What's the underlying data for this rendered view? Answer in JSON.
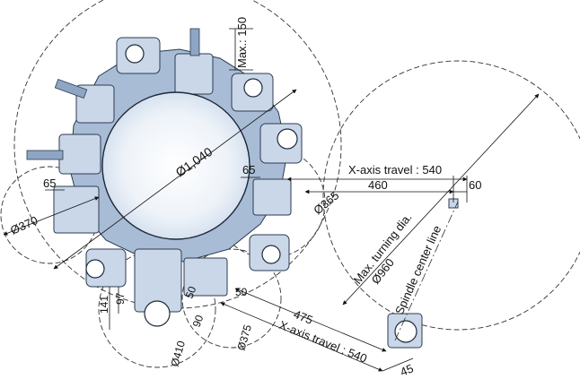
{
  "dimensions": {
    "max_150": "Max.: 150",
    "dia_1040": "Ø1,040",
    "x_travel_top": "X-axis travel : 540",
    "d_460": "460",
    "d_60": "60",
    "d_65_right": "65",
    "dia_365": "Ø365",
    "d_65_left": "65",
    "dia_370": "Ø370",
    "max_turning": "Max. turning dia.",
    "dia_960": "Ø960",
    "spindle_center": "Spindle center line",
    "d_141": "141",
    "d_97": "97",
    "d_50_a": "50",
    "d_90": "90",
    "dia_410": "Ø410",
    "d_50_b": "50",
    "dia_375": "Ø375",
    "d_475": "475",
    "x_travel_bottom": "X-axis travel : 540",
    "d_45": "45"
  },
  "colors": {
    "tool_fill": "#c9d7e8",
    "tool_shade": "#8ea6c4",
    "outline": "#1d2a3c"
  }
}
